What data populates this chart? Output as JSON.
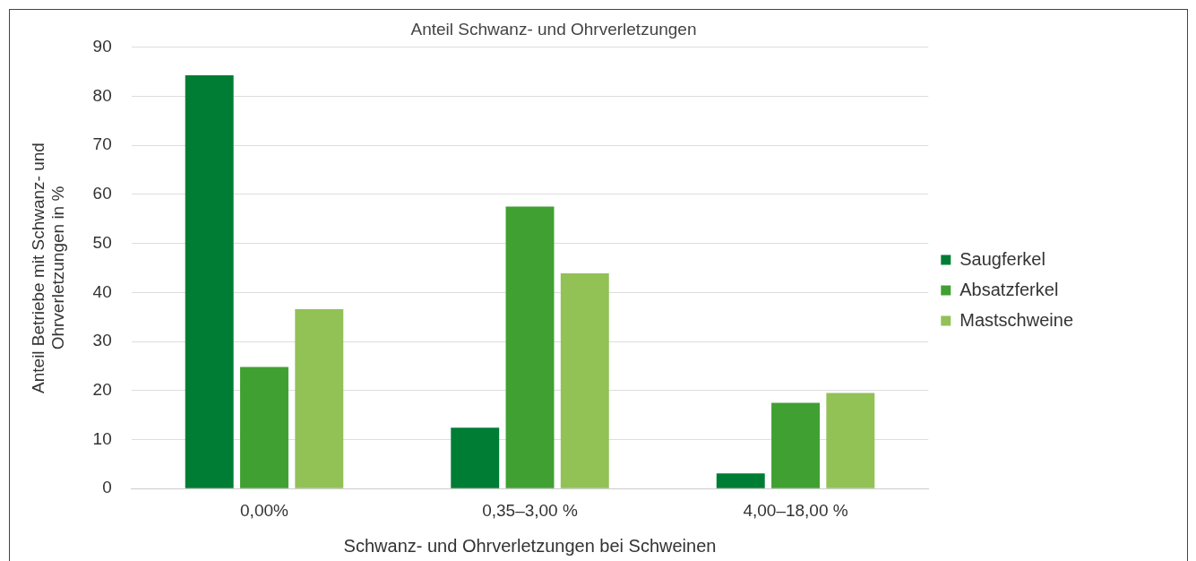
{
  "chart_data": {
    "type": "bar",
    "title": "Anteil Schwanz- und Ohrverletzungen",
    "xlabel": "Schwanz- und Ohrverletzungen bei Schweinen",
    "ylabel": "Anteil Betriebe mit Schwanz- und Ohrverletzungen in %",
    "categories": [
      "0,00%",
      "0,35–3,00 %",
      "4,00–18,00 %"
    ],
    "series": [
      {
        "name": "Saugferkel",
        "color": "#007d34",
        "values": [
          84.3,
          12.4,
          3.1
        ]
      },
      {
        "name": "Absatzferkel",
        "color": "#40a032",
        "values": [
          24.8,
          57.5,
          17.5
        ]
      },
      {
        "name": "Mastschweine",
        "color": "#92c156",
        "values": [
          36.6,
          43.9,
          19.5
        ]
      }
    ],
    "ylim": [
      0,
      90
    ],
    "yticks": [
      0,
      10,
      20,
      30,
      40,
      50,
      60,
      70,
      80,
      90
    ],
    "grid": "y",
    "legend": "right"
  }
}
